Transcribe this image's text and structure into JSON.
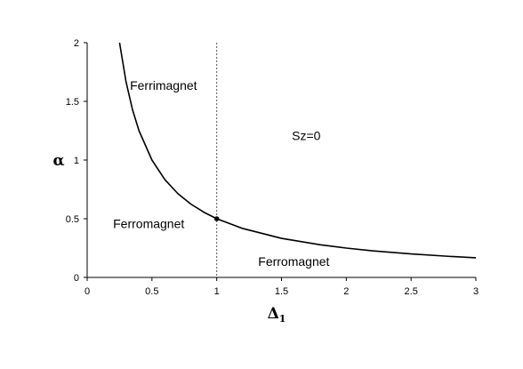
{
  "chart_data": {
    "type": "line",
    "xlabel": "Δ",
    "xlabel_subscript": "1",
    "ylabel": "α",
    "xlim": [
      0,
      3
    ],
    "ylim": [
      0,
      2
    ],
    "x_ticks": [
      0,
      0.5,
      1,
      1.5,
      2,
      2.5,
      3
    ],
    "x_tick_labels": [
      "0",
      "0.5",
      "1",
      "1.5",
      "2",
      "2.5",
      "3"
    ],
    "y_ticks": [
      0,
      0.5,
      1,
      1.5,
      2
    ],
    "y_tick_labels": [
      "0",
      "0.5",
      "1",
      "1.5",
      "2"
    ],
    "grid": false,
    "series": [
      {
        "x": [
          0.25,
          0.3,
          0.35,
          0.4,
          0.5,
          0.6,
          0.7,
          0.8,
          0.9,
          1.0,
          1.2,
          1.5,
          1.8,
          2.0,
          2.2,
          2.5,
          2.8,
          3.0
        ],
        "y": [
          2.0,
          1.667,
          1.429,
          1.25,
          1.0,
          0.833,
          0.714,
          0.625,
          0.556,
          0.5,
          0.417,
          0.333,
          0.278,
          0.25,
          0.227,
          0.2,
          0.179,
          0.167
        ]
      }
    ],
    "vertical_line": {
      "x": 1,
      "style": "dotted"
    },
    "marker_point": {
      "x": 1,
      "y": 0.5
    },
    "region_labels": [
      {
        "text": "Ferrimagnet",
        "x": 0.33,
        "y": 1.6
      },
      {
        "text": "Sz=0",
        "x": 1.58,
        "y": 1.17
      },
      {
        "text": "Ferromagnet",
        "x": 0.2,
        "y": 0.42
      },
      {
        "text": "Ferromagnet",
        "x": 1.32,
        "y": 0.1
      }
    ]
  }
}
